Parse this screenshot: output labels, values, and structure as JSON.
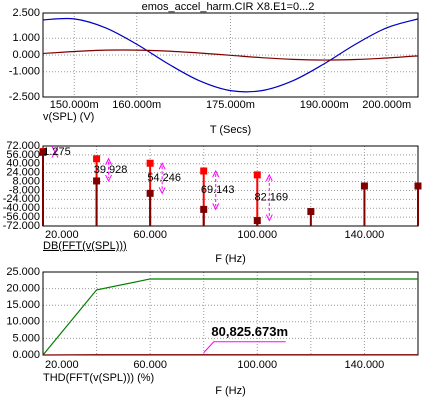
{
  "chart_data": [
    {
      "type": "line",
      "title": "emos_accel_harm.CIR X8.E1=0...2",
      "x_label": "T (Secs)",
      "x": [
        0.145,
        0.15,
        0.155,
        0.16,
        0.165,
        0.17,
        0.175,
        0.18,
        0.185,
        0.19,
        0.195,
        0.2,
        0.205
      ],
      "xlim": [
        0.145,
        0.205
      ],
      "xticks": [
        {
          "value": 0.15,
          "label": "150.000m"
        },
        {
          "value": 0.16,
          "label": "160.000m"
        },
        {
          "value": 0.175,
          "label": "175.000m"
        },
        {
          "value": 0.19,
          "label": "190.000m"
        },
        {
          "value": 0.2,
          "label": "200.000m"
        }
      ],
      "ylim": [
        -2.5,
        2.5
      ],
      "yticks": [
        {
          "value": 2.5,
          "label": "2.500"
        },
        {
          "value": 1,
          "label": "1.000"
        },
        {
          "value": 0,
          "label": "0.000"
        },
        {
          "value": -1,
          "label": "-1.000"
        },
        {
          "value": -2.5,
          "label": "-2.500"
        }
      ],
      "grid": true,
      "series": [
        {
          "name": "v(SPL) (V)",
          "color": "#0000c0",
          "values": [
            2.09,
            2.15,
            1.62,
            0.64,
            -0.52,
            -1.53,
            -2.12,
            -2.12,
            -1.53,
            -0.52,
            0.64,
            1.62,
            2.15
          ]
        },
        {
          "color": "#800000",
          "values": [
            0.09,
            0.21,
            0.29,
            0.29,
            0.23,
            0.12,
            -0.02,
            -0.16,
            -0.26,
            -0.3,
            -0.27,
            -0.18,
            -0.05
          ]
        }
      ]
    },
    {
      "type": "stem",
      "x_label": "F (Hz)",
      "x": [
        20,
        40,
        60,
        80,
        100,
        120,
        140,
        160
      ],
      "xlim": [
        20,
        160
      ],
      "xticks": [
        {
          "value": 20,
          "label": "20.000"
        },
        {
          "value": 60,
          "label": "60.000"
        },
        {
          "value": 100,
          "label": "100.000"
        },
        {
          "value": 140,
          "label": "140.000"
        }
      ],
      "ylim": [
        -72,
        72
      ],
      "yticks": [
        {
          "value": 72,
          "label": "72.000"
        },
        {
          "value": 56,
          "label": "56.000"
        },
        {
          "value": 40,
          "label": "40.000"
        },
        {
          "value": 24,
          "label": "24.000"
        },
        {
          "value": 8,
          "label": "8.000"
        },
        {
          "value": -8,
          "label": "-8.000"
        },
        {
          "value": -24,
          "label": "-24.000"
        },
        {
          "value": -40,
          "label": "-40.000"
        },
        {
          "value": -56,
          "label": "-56.000"
        },
        {
          "value": -72,
          "label": "-72.000"
        }
      ],
      "grid": true,
      "series": [
        {
          "color": "#ff0000",
          "values": [
            62,
            49,
            41,
            27,
            20,
            null,
            null,
            null
          ]
        },
        {
          "name": "DB(FFT(v(SPL)))",
          "color": "#800000",
          "values": [
            60.7,
            9.1,
            -13.2,
            -42.1,
            -62.2,
            -46,
            0,
            0
          ]
        }
      ],
      "annotations": [
        "1.275",
        "39.928",
        "54.246",
        "69.143",
        "82.169"
      ]
    },
    {
      "type": "line",
      "x_label": "F (Hz)",
      "x": [
        20,
        40,
        60,
        80,
        100,
        120,
        140,
        160
      ],
      "xlim": [
        20,
        160
      ],
      "xticks": [
        {
          "value": 20,
          "label": "20.000"
        },
        {
          "value": 60,
          "label": "60.000"
        },
        {
          "value": 100,
          "label": "100.000"
        },
        {
          "value": 140,
          "label": "140.000"
        }
      ],
      "ylim": [
        0,
        25
      ],
      "yticks": [
        {
          "value": 25,
          "label": "25.000"
        },
        {
          "value": 20,
          "label": "20.000"
        },
        {
          "value": 15,
          "label": "15.000"
        },
        {
          "value": 10,
          "label": "10.000"
        },
        {
          "value": 5,
          "label": "5.000"
        },
        {
          "value": 0,
          "label": "0.000"
        }
      ],
      "grid": true,
      "series": [
        {
          "name": "THD(FFT(v(SPL))) (%)",
          "color": "#008000",
          "values": [
            0,
            19.6,
            22.9,
            22.9,
            22.9,
            22.9,
            22.9,
            22.9
          ]
        },
        {
          "color": "#800000",
          "values": [
            0,
            0.08,
            0.08,
            0.08,
            0.08,
            0.08,
            0.08,
            0.08
          ]
        }
      ],
      "annotation": "80,825.673m"
    }
  ]
}
